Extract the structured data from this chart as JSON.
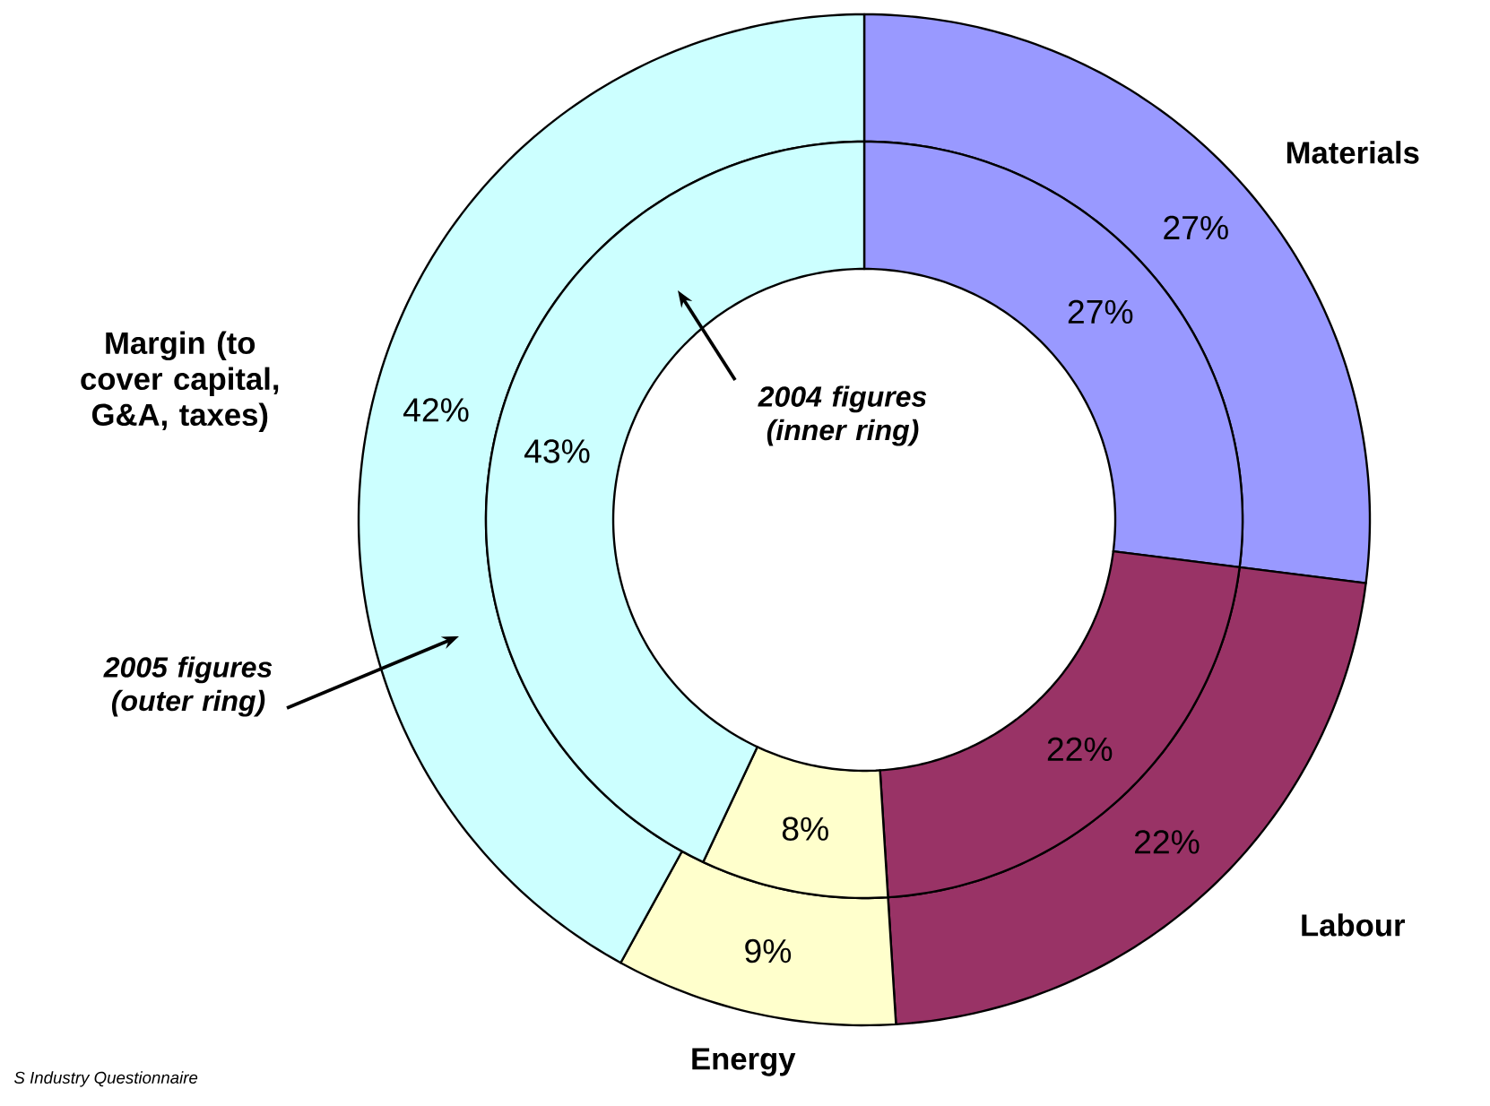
{
  "chart_data": {
    "type": "donut",
    "categories": [
      "Materials",
      "Labour",
      "Energy",
      "Margin (to cover capital, G&A, taxes)"
    ],
    "colors": [
      "#9999ff",
      "#993366",
      "#ffffcc",
      "#ccffff"
    ],
    "series": [
      {
        "values": [
          27,
          22,
          9,
          42
        ],
        "value_labels": [
          "27%",
          "22%",
          "9%",
          "42%"
        ]
      },
      {
        "values": [
          27,
          22,
          8,
          43
        ],
        "value_labels": [
          "27%",
          "22%",
          "8%",
          "43%"
        ]
      }
    ],
    "data_labels": true,
    "annotations": [
      "2004 figures (inner ring)",
      "2005 figures (outer ring)",
      "S Industry Questionnaire"
    ]
  }
}
